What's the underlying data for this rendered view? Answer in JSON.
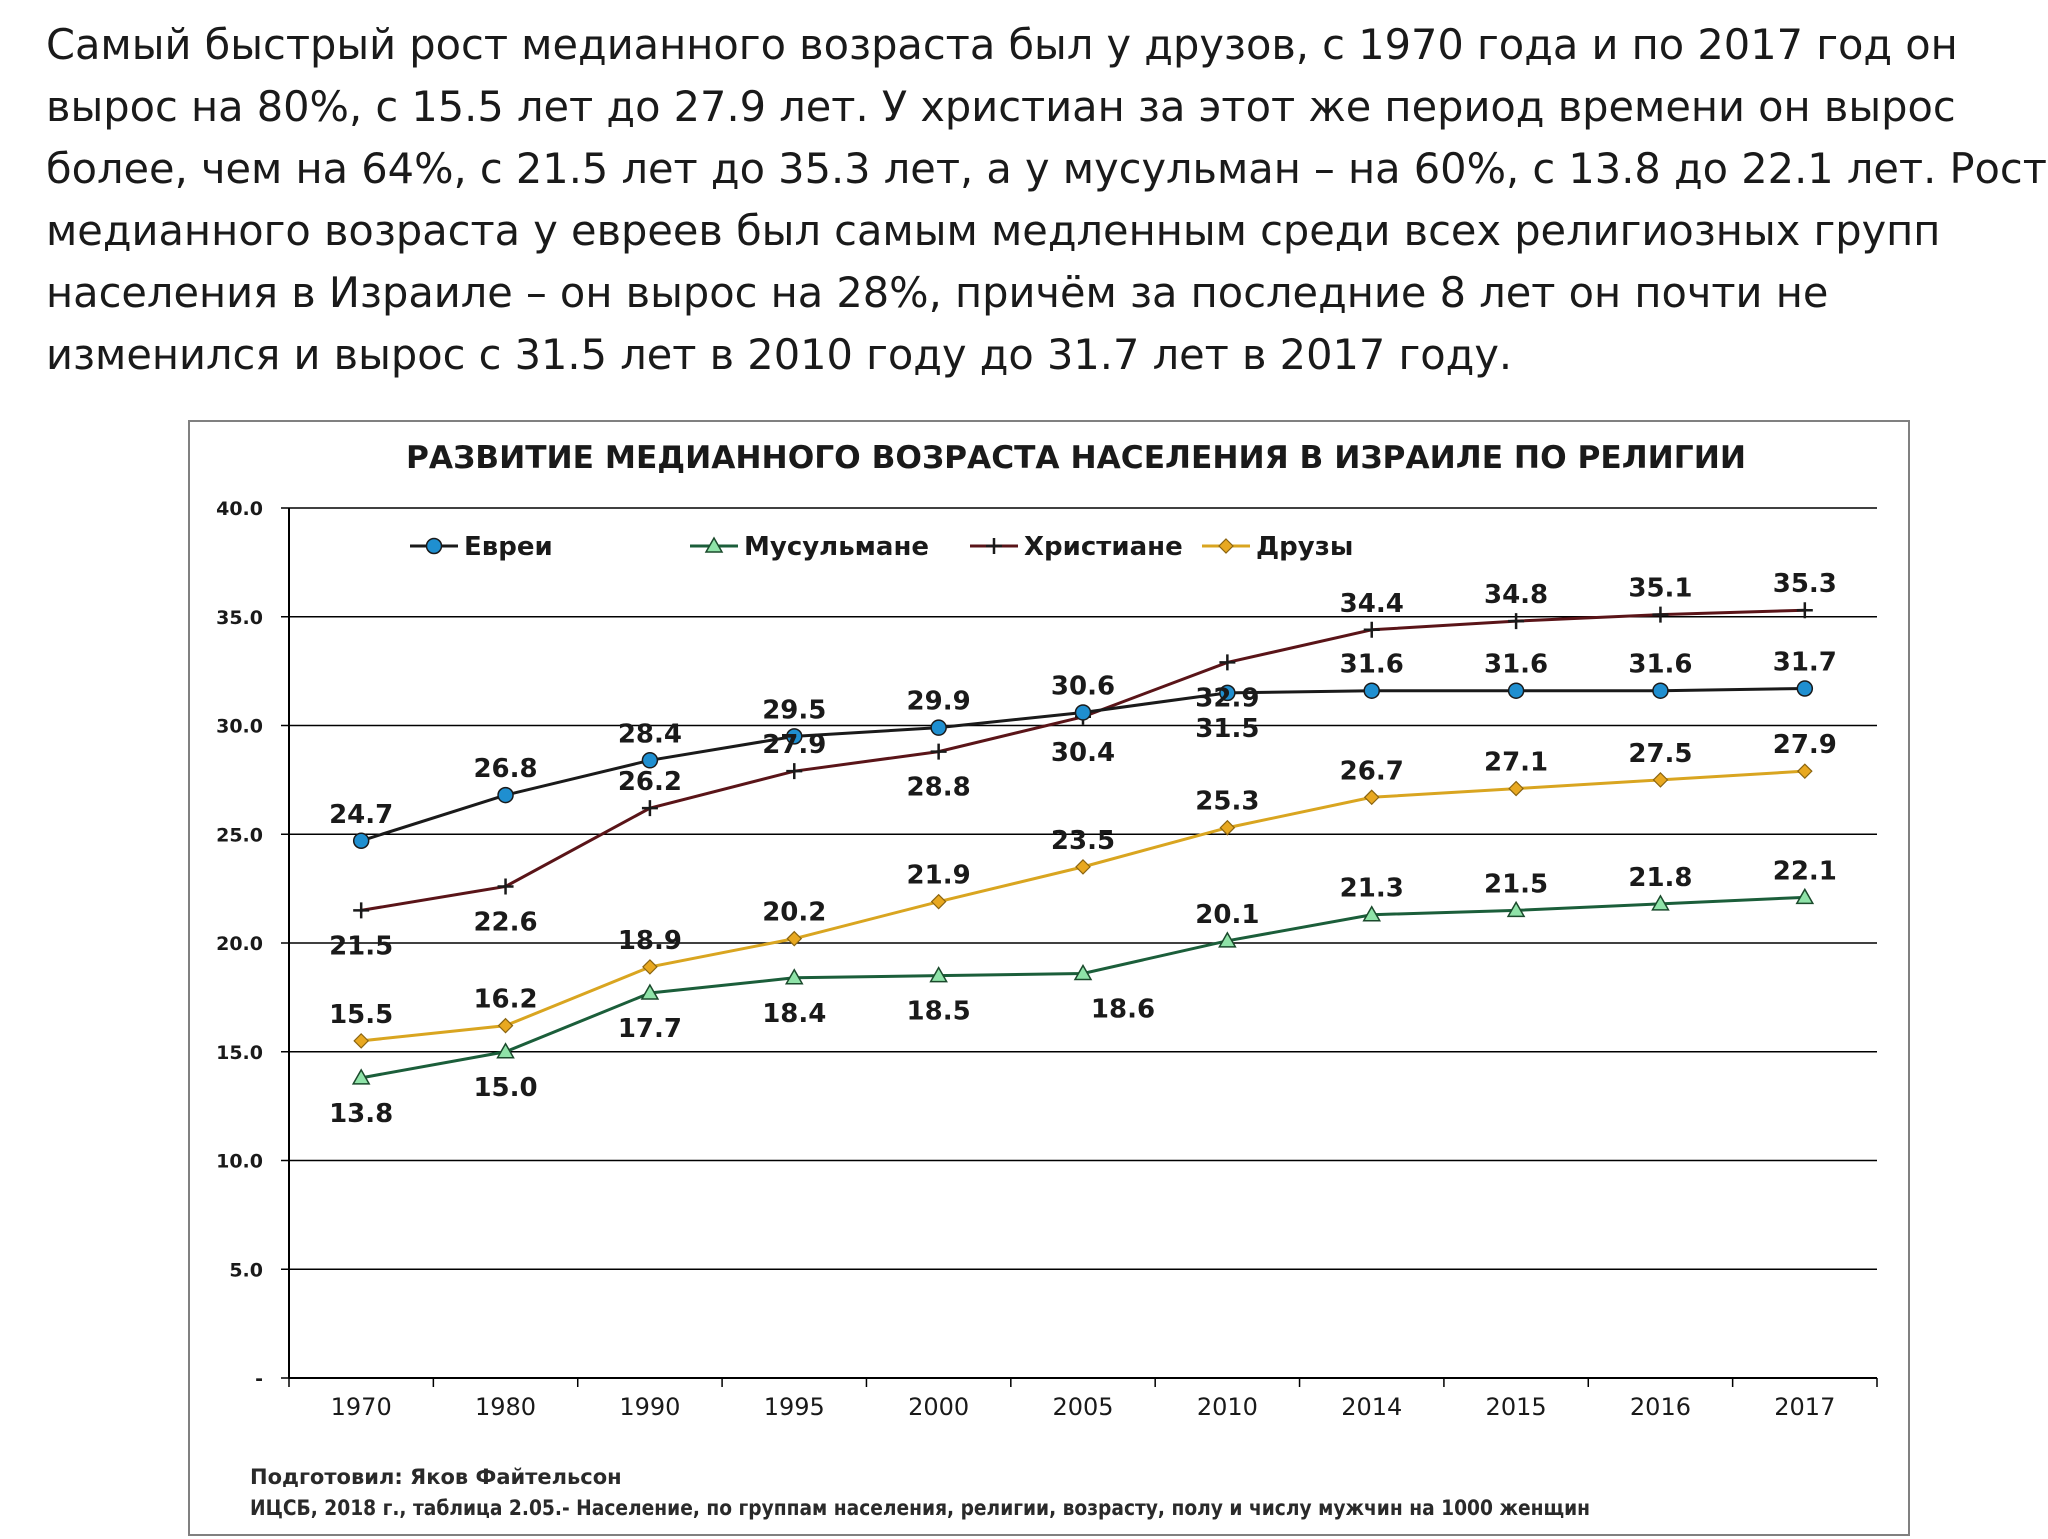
{
  "intro_lines": [
    "Самый быстрый рост медианного возраста был у друзов, с 1970 года и по 2017 год он",
    "вырос на 80%, с 15.5 лет до 27.9 лет. У христиан за этот же период времени он вырос",
    "более, чем на 64%, с 21.5 лет до 35.3 лет, а у мусульман – на  60%, с 13.8 до 22.1 лет. Рост",
    "медианного возраста  у евреев был самым медленным среди всех религиозных групп",
    "населения в Израиле – он вырос на 28%, причём за последние 8 лет он почти не",
    "изменился и вырос с 31.5 лет в 2010 году до 31.7 лет в 2017 году."
  ],
  "chart_data": {
    "type": "line",
    "title": "РАЗВИТИЕ МЕДИАННОГО ВОЗРАСТА НАСЕЛЕНИЯ В ИЗРАИЛЕ ПО РЕЛИГИИ",
    "categories": [
      "1970",
      "1980",
      "1990",
      "1995",
      "2000",
      "2005",
      "2010",
      "2014",
      "2015",
      "2016",
      "2017"
    ],
    "yticks": [
      "-",
      "5.0",
      "10.0",
      "15.0",
      "20.0",
      "25.0",
      "30.0",
      "35.0",
      "40.0"
    ],
    "ylim": [
      0,
      40
    ],
    "grid": true,
    "legend_position": "top-left",
    "series": [
      {
        "name": "Евреи",
        "marker": "circle",
        "line_color": "#1a1a1a",
        "marker_color": "#1f8fd0",
        "values": [
          24.7,
          26.8,
          28.4,
          29.5,
          29.9,
          30.6,
          31.5,
          31.6,
          31.6,
          31.6,
          31.7
        ],
        "labels": [
          "24.7",
          "26.8",
          "28.4",
          "29.5",
          "29.9",
          "30.6",
          "31.5",
          "31.6",
          "31.6",
          "31.6",
          "31.7"
        ]
      },
      {
        "name": "Мусульмане",
        "marker": "triangle",
        "line_color": "#1b5e3a",
        "marker_color": "#8fe3a8",
        "values": [
          13.8,
          15.0,
          17.7,
          18.4,
          18.5,
          18.6,
          20.1,
          21.3,
          21.5,
          21.8,
          22.1
        ],
        "labels": [
          "13.8",
          "15.0",
          "17.7",
          "18.4",
          "18.5",
          "18.6",
          "20.1",
          "21.3",
          "21.5",
          "21.8",
          "22.1"
        ]
      },
      {
        "name": "Христиане",
        "marker": "plus",
        "line_color": "#5a1418",
        "marker_color": "#1a1a1a",
        "values": [
          21.5,
          22.6,
          26.2,
          27.9,
          28.8,
          30.4,
          32.9,
          34.4,
          34.8,
          35.1,
          35.3
        ],
        "labels": [
          "21.5",
          "22.6",
          "26.2",
          "27.9",
          "28.8",
          "30.4",
          "32.9",
          "34.4",
          "34.8",
          "35.1",
          "35.3"
        ]
      },
      {
        "name": "Друзы",
        "marker": "diamond",
        "line_color": "#d9a520",
        "marker_color": "#e8a820",
        "values": [
          15.5,
          16.2,
          18.9,
          20.2,
          21.9,
          23.5,
          25.3,
          26.7,
          27.1,
          27.5,
          27.9
        ],
        "labels": [
          "15.5",
          "16.2",
          "18.9",
          "20.2",
          "21.9",
          "23.5",
          "25.3",
          "26.7",
          "27.1",
          "27.5",
          "27.9"
        ]
      }
    ],
    "credit": "Подготовил: Яков Файтельсон",
    "source": "ИЦСБ, 2018 г., таблица 2.05.- Население, по группам населения, религии, возрасту, полу и числу мужчин на 1000 женщин"
  }
}
